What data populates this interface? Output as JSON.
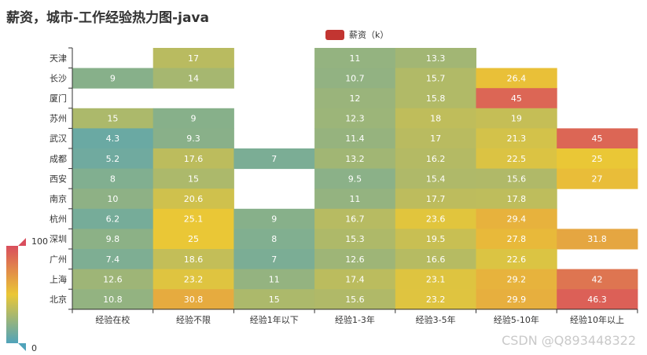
{
  "chart_data": {
    "type": "heatmap",
    "title": "薪资，城市-工作经验热力图-java",
    "series_name": "薪资（k）",
    "x_categories": [
      "经验在校",
      "经验不限",
      "经验1年以下",
      "经验1-3年",
      "经验3-5年",
      "经验5-10年",
      "经验10年以上"
    ],
    "y_categories": [
      "天津",
      "长沙",
      "厦门",
      "苏州",
      "武汉",
      "成都",
      "西安",
      "南京",
      "杭州",
      "深圳",
      "广州",
      "上海",
      "北京"
    ],
    "values": [
      [
        null,
        17,
        null,
        11,
        13.3,
        null,
        null
      ],
      [
        9,
        14,
        null,
        10.7,
        15.7,
        26.4,
        null
      ],
      [
        null,
        null,
        null,
        12,
        15.8,
        45,
        null
      ],
      [
        15,
        9,
        null,
        12.3,
        18,
        19,
        null
      ],
      [
        4.3,
        9.3,
        null,
        11.4,
        17,
        21.3,
        45
      ],
      [
        5.2,
        17.6,
        7,
        13.2,
        16.2,
        22.5,
        25
      ],
      [
        8,
        15,
        null,
        9.5,
        15.4,
        15.6,
        27
      ],
      [
        10,
        20.6,
        null,
        11,
        17.7,
        17.8,
        null
      ],
      [
        6.2,
        25.1,
        9,
        16.7,
        23.6,
        29.4,
        null
      ],
      [
        9.8,
        25,
        8,
        15.3,
        19.5,
        27.8,
        31.8
      ],
      [
        7.4,
        18.6,
        7,
        12.6,
        16.6,
        22.6,
        null
      ],
      [
        12.6,
        23.2,
        11,
        17.4,
        23.1,
        29.2,
        42
      ],
      [
        10.8,
        30.8,
        15,
        15.6,
        23.2,
        29.9,
        46.3
      ]
    ],
    "visual_map": {
      "min": 0,
      "max": 100,
      "min_label": "0",
      "max_label": "100",
      "range_shown": [
        0,
        50
      ]
    },
    "color_scale": [
      "#50a3ba",
      "#eac736",
      "#d94e5d"
    ],
    "legend_color": "#c23531"
  },
  "watermark_text": "CSDN @Q893448322"
}
